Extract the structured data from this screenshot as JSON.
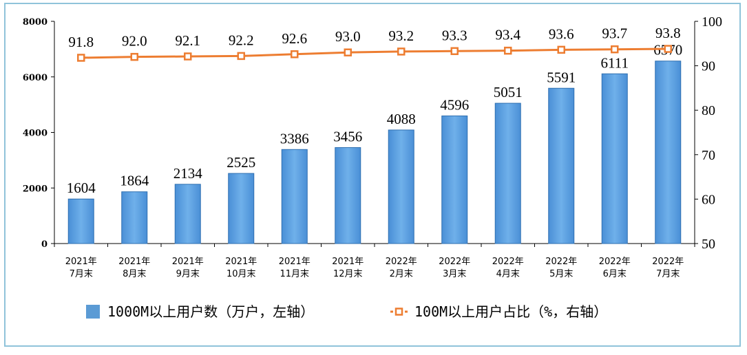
{
  "chart_data": {
    "type": "bar",
    "categories": [
      [
        "2021年",
        "7月末"
      ],
      [
        "2021年",
        "8月末"
      ],
      [
        "2021年",
        "9月末"
      ],
      [
        "2021年",
        "10月末"
      ],
      [
        "2021年",
        "11月末"
      ],
      [
        "2021年",
        "12月末"
      ],
      [
        "2022年",
        "2月末"
      ],
      [
        "2022年",
        "3月末"
      ],
      [
        "2022年",
        "4月末"
      ],
      [
        "2022年",
        "5月末"
      ],
      [
        "2022年",
        "6月末"
      ],
      [
        "2022年",
        "7月末"
      ]
    ],
    "series": [
      {
        "name": "1000M以上用户数（万户，左轴）",
        "type": "bar",
        "axis": "left",
        "color": "#5b9bd5",
        "values": [
          1604,
          1864,
          2134,
          2525,
          3386,
          3456,
          4088,
          4596,
          5051,
          5591,
          6111,
          6570
        ],
        "labels": [
          "1604",
          "1864",
          "2134",
          "2525",
          "3386",
          "3456",
          "4088",
          "4596",
          "5051",
          "5591",
          "6111",
          "6570"
        ]
      },
      {
        "name": "100M以上用户占比（%，右轴）",
        "type": "line",
        "axis": "right",
        "color": "#ed7d31",
        "values": [
          91.8,
          92.0,
          92.1,
          92.2,
          92.6,
          93.0,
          93.2,
          93.3,
          93.4,
          93.6,
          93.7,
          93.8
        ],
        "labels": [
          "91.8",
          "92.0",
          "92.1",
          "92.2",
          "92.6",
          "93.0",
          "93.2",
          "93.3",
          "93.4",
          "93.6",
          "93.7",
          "93.8"
        ]
      }
    ],
    "y_left": {
      "min": 0,
      "max": 8000,
      "ticks": [
        "0",
        "2000",
        "4000",
        "6000",
        "8000"
      ]
    },
    "y_right": {
      "min": 50,
      "max": 100,
      "ticks": [
        "50",
        "60",
        "70",
        "80",
        "90",
        "100"
      ]
    },
    "legend": {
      "position": "bottom",
      "items": [
        "1000M以上用户数（万户，左轴）",
        "100M以上用户占比（%，右轴）"
      ]
    },
    "grid": false
  }
}
